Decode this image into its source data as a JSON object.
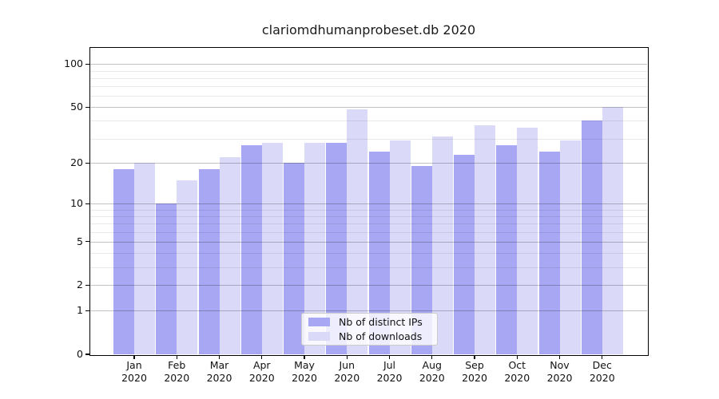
{
  "figure": {
    "title": "clariomdhumanprobeset.db 2020"
  },
  "chart_data": {
    "type": "bar",
    "title": "clariomdhumanprobeset.db 2020",
    "categories": [
      "Jan",
      "Feb",
      "Mar",
      "Apr",
      "May",
      "Jun",
      "Jul",
      "Aug",
      "Sep",
      "Oct",
      "Nov",
      "Dec"
    ],
    "category_year": "2020",
    "series": [
      {
        "name": "Nb of distinct IPs",
        "color": "#a7a7f3",
        "values": [
          18,
          10,
          18,
          27,
          20,
          28,
          24,
          19,
          23,
          27,
          24,
          40
        ]
      },
      {
        "name": "Nb of downloads",
        "color": "#dadaf8",
        "values": [
          20,
          15,
          22,
          28,
          28,
          48,
          29,
          31,
          37,
          36,
          29,
          50
        ]
      }
    ],
    "xlabel": "",
    "ylabel": "",
    "yscale": "log1p",
    "ylim": [
      0,
      130
    ],
    "yticks": [
      100,
      50,
      20,
      10,
      5,
      2,
      1,
      0
    ],
    "yticks_minor": [
      3,
      4,
      6,
      7,
      8,
      9,
      30,
      40,
      60,
      70,
      80,
      90
    ],
    "grid": true,
    "legend_position": "lower-center-inside"
  },
  "colors": {
    "series_distinct_ips": "#a7a7f3",
    "series_downloads": "#dadaf8",
    "grid_major": "#c7c7c7",
    "grid_minor": "#ebebeb",
    "spine": "#000000",
    "background": "#ffffff",
    "legend_border": "#cccccc"
  }
}
